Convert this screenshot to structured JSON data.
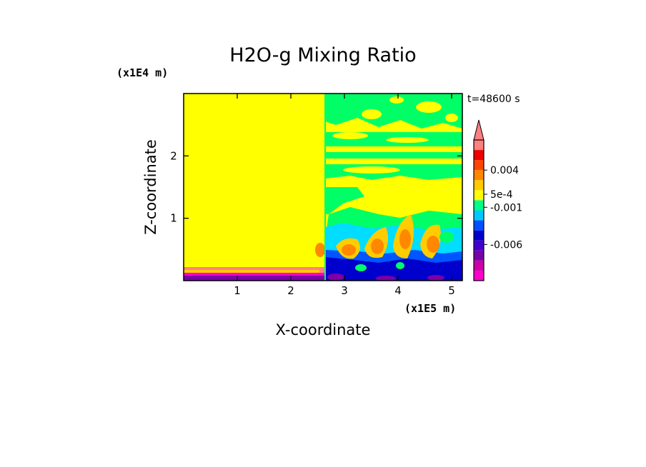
{
  "chart_data": {
    "type": "heatmap",
    "title": "H2O-g Mixing Ratio",
    "time_label": "t=48600 s",
    "xlabel": "X-coordinate",
    "ylabel": "Z-coordinate",
    "x_unit": "(x1E5 m)",
    "y_unit": "(x1E4 m)",
    "xlim": [
      0,
      5.2
    ],
    "ylim": [
      0,
      3.0
    ],
    "x_ticks": [
      1,
      2,
      3,
      4,
      5
    ],
    "y_ticks": [
      1,
      2
    ],
    "colorbar": {
      "extend": "max",
      "labels": [
        "0.004",
        "5e-4",
        "-0.001",
        "-0.006"
      ],
      "colors": [
        "#ff00cc",
        "#cc00aa",
        "#7a00a8",
        "#4400cc",
        "#0000cc",
        "#0050ff",
        "#00c8ff",
        "#00ff88",
        "#ffff00",
        "#ffcc00",
        "#ff8800",
        "#ff4400",
        "#ee0000",
        "#ff8080"
      ]
    }
  }
}
